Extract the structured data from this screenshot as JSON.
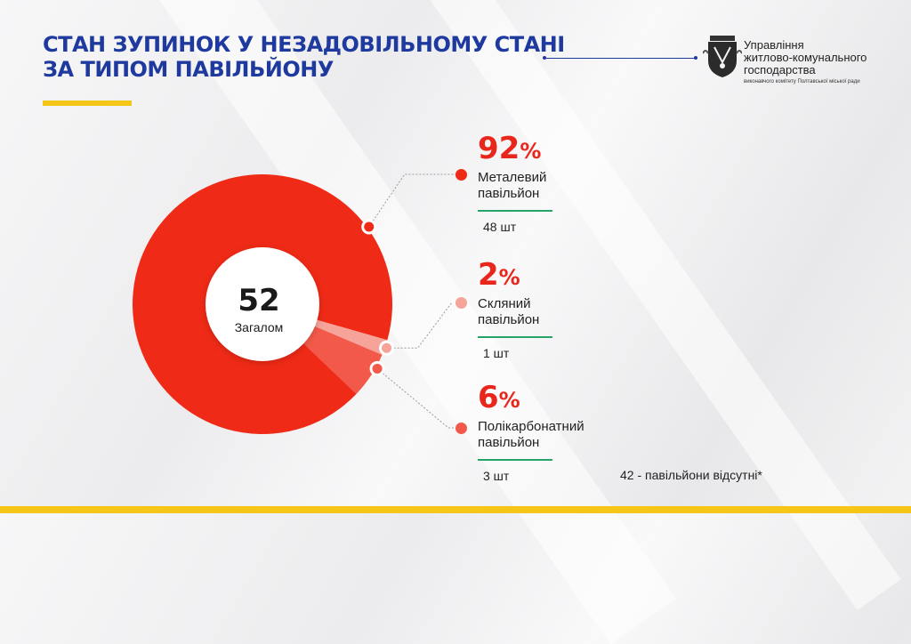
{
  "header": {
    "title_line1": "СТАН ЗУПИНОК У НЕЗАДОВІЛЬНОМУ СТАНІ",
    "title_line2": "ЗА ТИПОМ ПАВІЛЬЙОНУ",
    "org_line1": "Управління",
    "org_line2": "житлово-комунального",
    "org_line3": "господарства",
    "org_sub": "виконавчого комітету Полтавської міської ради"
  },
  "chart_data": {
    "type": "pie",
    "center_total": "52",
    "center_label": "Загалом",
    "slices": [
      {
        "label_line1": "Металевий",
        "label_line2": "павільйон",
        "percent": 92,
        "count": 48,
        "count_label": "48 шт",
        "color": "#ef2a16"
      },
      {
        "label_line1": "Скляний",
        "label_line2": "павільйон",
        "percent": 2,
        "count": 1,
        "count_label": "1 шт",
        "color": "#f6a39a"
      },
      {
        "label_line1": "Полікарбонатний",
        "label_line2": "павільйон",
        "percent": 6,
        "count": 3,
        "count_label": "3 шт",
        "color": "#f3594a"
      }
    ],
    "note": "42 -  павільйони відсутні*"
  },
  "colors": {
    "accent_blue": "#1f3a9e",
    "accent_red": "#e8261b",
    "accent_yellow": "#f5c518",
    "rule_green": "#27a36a"
  }
}
